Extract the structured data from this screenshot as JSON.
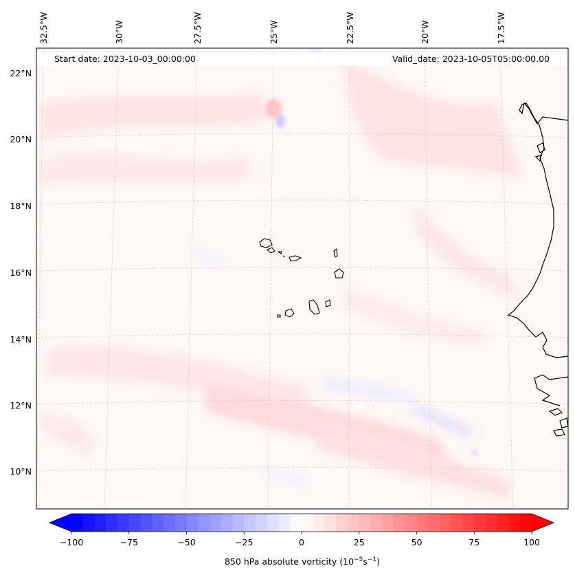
{
  "map": {
    "start_date": "Start date: 2023-10-03_00:00:00",
    "valid_date": "Valid_date: 2023-10-05T05:00:00.00",
    "lon_labels": [
      "32.5°W",
      "30°W",
      "27.5°W",
      "25°W",
      "22.5°W",
      "20°W",
      "17.5°W"
    ],
    "lat_labels": [
      "22°N",
      "20°N",
      "18°N",
      "16°N",
      "14°N",
      "12°N",
      "10°N"
    ]
  },
  "colorbar": {
    "label_prefix": "850 hPa absolute vorticity (10",
    "label_exp1": "−5",
    "label_mid": "s",
    "label_exp2": "−1",
    "label_suffix": ")",
    "ticks": [
      "−100",
      "−75",
      "−50",
      "−25",
      "0",
      "25",
      "50",
      "75",
      "100"
    ],
    "min": -100,
    "max": 100,
    "colors": {
      "negative": "#0000ff",
      "zero": "#ffffff",
      "positive": "#ff0000"
    }
  }
}
